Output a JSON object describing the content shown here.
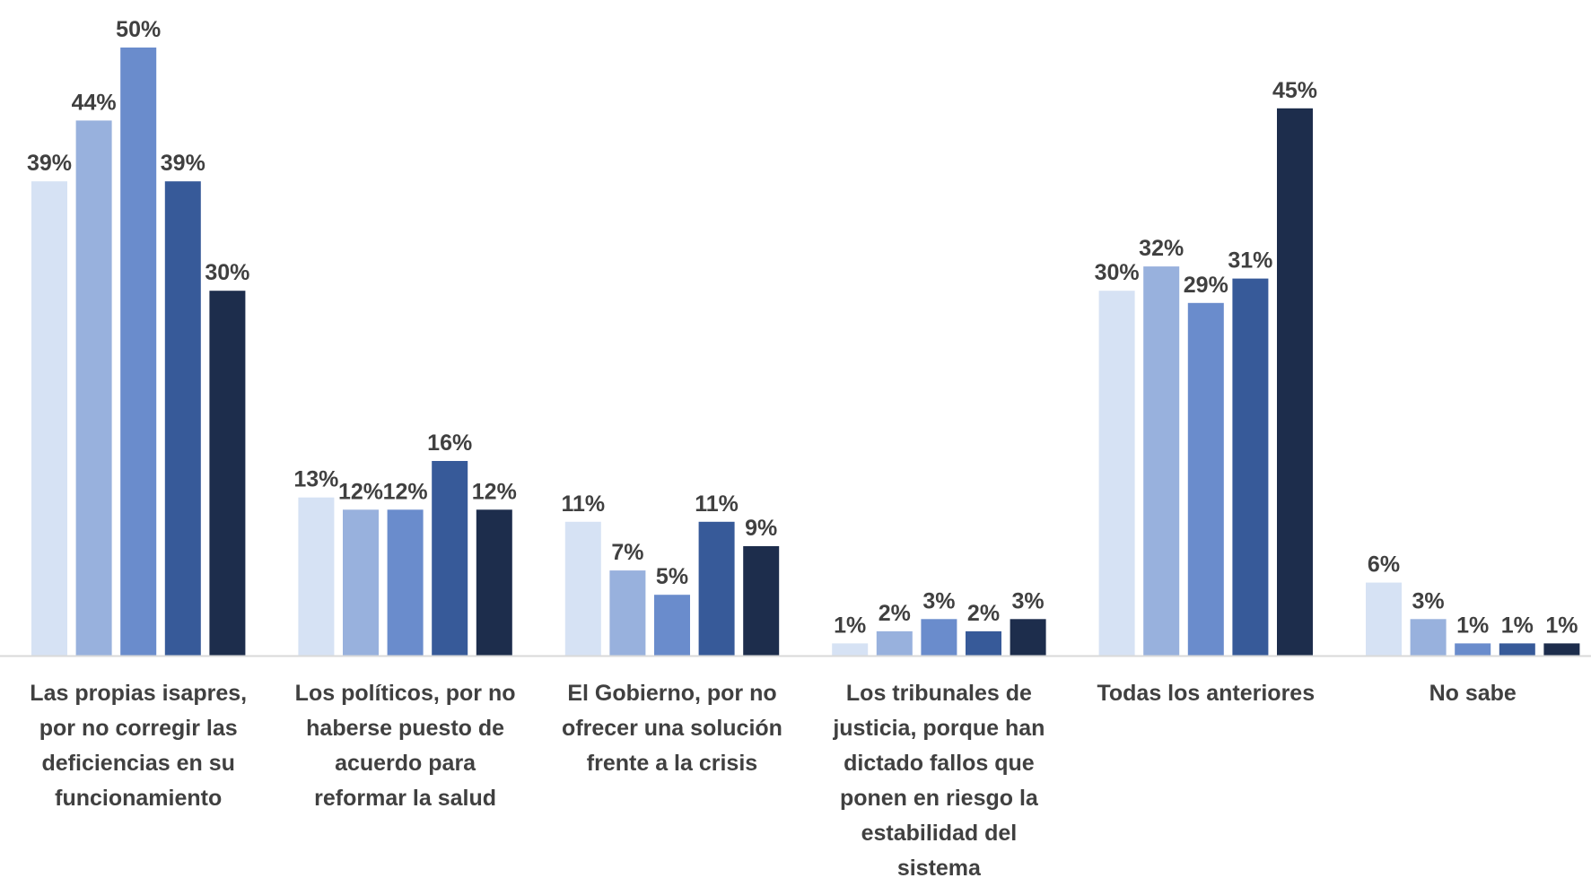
{
  "chart_data": {
    "type": "bar",
    "title": "",
    "xlabel": "",
    "ylabel": "",
    "ylim": [
      0,
      50
    ],
    "grid": false,
    "legend": "none",
    "categories": [
      [
        "Las propias isapres,",
        "por no corregir las",
        "deficiencias en su",
        "funcionamiento"
      ],
      [
        "Los políticos, por no",
        "haberse puesto de",
        "acuerdo para",
        "reformar la salud"
      ],
      [
        "El Gobierno, por no",
        "ofrecer una solución",
        "frente a la crisis"
      ],
      [
        "Los tribunales de",
        "justicia, porque han",
        "dictado fallos que",
        "ponen en riesgo la",
        "estabilidad del",
        "sistema"
      ],
      [
        "Todas los anteriores"
      ],
      [
        "No sabe"
      ]
    ],
    "series": [
      {
        "color": "#d6e2f4",
        "values": [
          39,
          13,
          11,
          1,
          30,
          6
        ],
        "labels": [
          "39%",
          "13%",
          "11%",
          "1%",
          "30%",
          "6%"
        ]
      },
      {
        "color": "#98b1dd",
        "values": [
          44,
          12,
          7,
          2,
          32,
          3
        ],
        "labels": [
          "44%",
          "12%",
          "7%",
          "2%",
          "32%",
          "3%"
        ]
      },
      {
        "color": "#6a8ccc",
        "values": [
          50,
          12,
          5,
          3,
          29,
          1
        ],
        "labels": [
          "50%",
          "12%",
          "5%",
          "3%",
          "29%",
          "1%"
        ]
      },
      {
        "color": "#375a99",
        "values": [
          39,
          16,
          11,
          2,
          31,
          1
        ],
        "labels": [
          "39%",
          "16%",
          "11%",
          "2%",
          "31%",
          "1%"
        ]
      },
      {
        "color": "#1d2d4c",
        "values": [
          30,
          12,
          9,
          3,
          45,
          1
        ],
        "labels": [
          "30%",
          "12%",
          "9%",
          "3%",
          "45%",
          "1%"
        ]
      }
    ],
    "colors": {
      "axis": "#d9d9d9",
      "text": "#404040"
    }
  }
}
